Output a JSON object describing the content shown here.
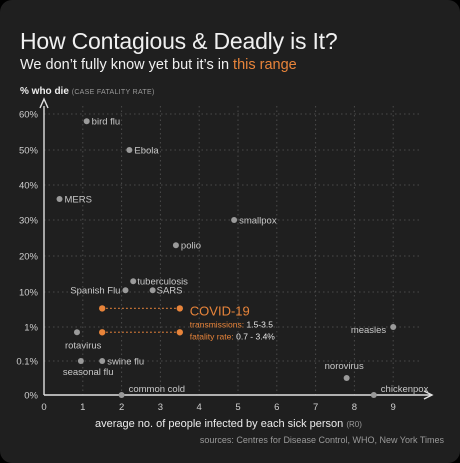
{
  "title": "How Contagious & Deadly is It?",
  "subtitle_prefix": "We don’t fully know yet but it’s in ",
  "subtitle_highlight": "this range",
  "ylabel": "% who die",
  "ylabel_note": "(CASE FATALITY RATE)",
  "xlabel": "average no. of people infected by each sick person",
  "xlabel_note": "(R0)",
  "sources": "sources: Centres for Disease Control, WHO, New York Times",
  "colors": {
    "background": "#1f1f1f",
    "point": "#9a9a9a",
    "covid": "#e8843a",
    "grid": "#4a4a4a",
    "text": "#f0f0f0"
  },
  "chart_data": {
    "type": "scatter",
    "title": "How Contagious & Deadly is It?",
    "xlabel": "average no. of people infected by each sick person (R0)",
    "ylabel": "% who die (CASE FATALITY RATE)",
    "xlim": [
      0,
      9.8
    ],
    "x_ticks": [
      "0",
      "1",
      "2",
      "3",
      "4",
      "5",
      "6",
      "7",
      "8",
      "9"
    ],
    "y_scale": "categorical-log",
    "y_ticks": [
      "0%",
      "0.1%",
      "1%",
      "10%",
      "20%",
      "30%",
      "40%",
      "50%",
      "60%"
    ],
    "grid": true,
    "points": [
      {
        "name": "bird flu",
        "x": 1.1,
        "y": "58%"
      },
      {
        "name": "Ebola",
        "x": 2.2,
        "y": "50%"
      },
      {
        "name": "MERS",
        "x": 0.4,
        "y": "36%"
      },
      {
        "name": "smallpox",
        "x": 4.9,
        "y": "30%"
      },
      {
        "name": "polio",
        "x": 3.4,
        "y": "23%"
      },
      {
        "name": "tuberculosis",
        "x": 2.3,
        "y": "13%"
      },
      {
        "name": "Spanish Flu",
        "x": 2.1,
        "y": "10.5%"
      },
      {
        "name": "SARS",
        "x": 2.8,
        "y": "10.5%"
      },
      {
        "name": "measles",
        "x": 9.0,
        "y": "1%"
      },
      {
        "name": "rotavirus",
        "x": 0.85,
        "y": "0.7%"
      },
      {
        "name": "swine flu",
        "x": 1.5,
        "y": "0.1%"
      },
      {
        "name": "seasonal flu",
        "x": 0.95,
        "y": "0.1%"
      },
      {
        "name": "common cold",
        "x": 2.0,
        "y": "0%"
      },
      {
        "name": "norovirus",
        "x": 7.8,
        "y": "0.05%"
      },
      {
        "name": "chickenpox",
        "x": 8.5,
        "y": "0%"
      }
    ],
    "covid19": {
      "name": "COVID-19",
      "transmissions_label": "transmissions:",
      "transmissions_value": "1.5-3.5",
      "fatality_label": "fatality rate:",
      "fatality_value": "0.7 - 3.4%",
      "corners": [
        {
          "x": 1.5,
          "y": "3.4%"
        },
        {
          "x": 3.5,
          "y": "3.4%"
        },
        {
          "x": 1.5,
          "y": "0.7%"
        },
        {
          "x": 3.5,
          "y": "0.7%"
        }
      ]
    }
  }
}
